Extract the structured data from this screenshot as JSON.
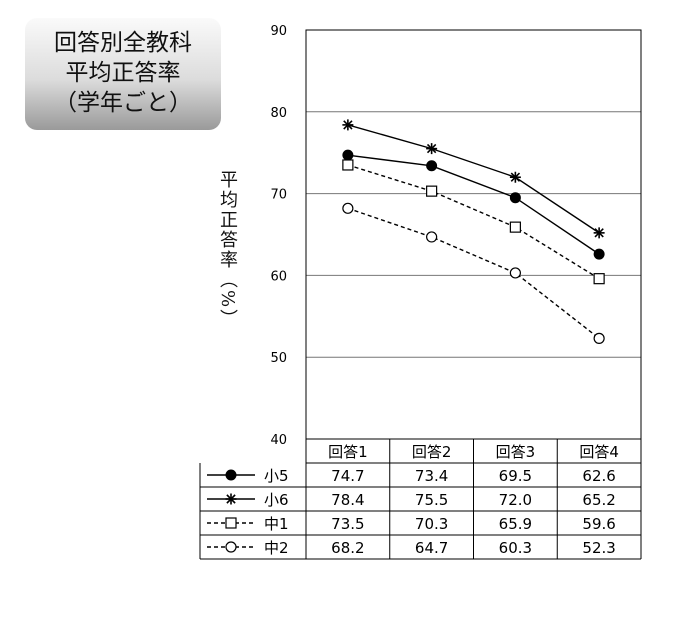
{
  "title_lines": [
    "回答別全教科",
    "平均正答率",
    "（学年ごと）"
  ],
  "chart_data": {
    "type": "line",
    "ylabel": "平均正答率（%）",
    "xlabel": "",
    "categories": [
      "回答1",
      "回答2",
      "回答3",
      "回答4"
    ],
    "ylim": [
      40,
      90
    ],
    "yticks": [
      "40",
      "50",
      "60",
      "70",
      "80",
      "90"
    ],
    "grid": true,
    "legend": "table-below",
    "series": [
      {
        "name": "小5",
        "values": [
          74.7,
          73.4,
          69.5,
          62.6
        ],
        "value_labels": [
          "74.7",
          "73.4",
          "69.5",
          "62.6"
        ],
        "marker": "filled-circle",
        "line": "solid",
        "color": "#000000"
      },
      {
        "name": "小6",
        "values": [
          78.4,
          75.5,
          72.0,
          65.2
        ],
        "value_labels": [
          "78.4",
          "75.5",
          "72.0",
          "65.2"
        ],
        "marker": "asterisk",
        "line": "solid",
        "color": "#000000"
      },
      {
        "name": "中1",
        "values": [
          73.5,
          70.3,
          65.9,
          59.6
        ],
        "value_labels": [
          "73.5",
          "70.3",
          "65.9",
          "59.6"
        ],
        "marker": "open-square",
        "line": "dashed",
        "color": "#000000"
      },
      {
        "name": "中2",
        "values": [
          68.2,
          64.7,
          60.3,
          52.3
        ],
        "value_labels": [
          "68.2",
          "64.7",
          "60.3",
          "52.3"
        ],
        "marker": "open-circle",
        "line": "dashed",
        "color": "#000000"
      }
    ]
  }
}
